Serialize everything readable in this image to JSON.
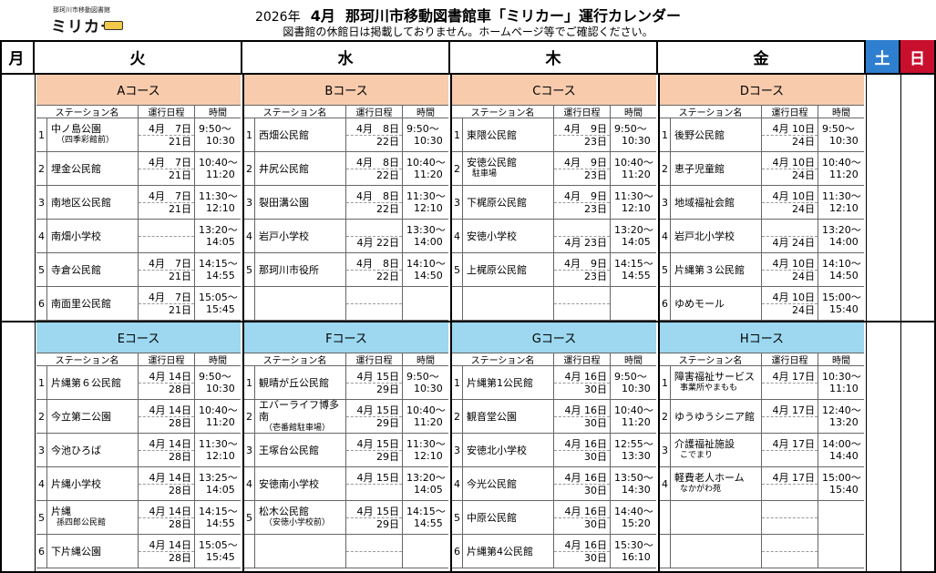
{
  "logo": {
    "small": "那珂川市移動図書館",
    "large": "ミリカー"
  },
  "title": {
    "year": "2026年",
    "month": "4月",
    "main": "那珂川市移動図書館車「ミリカー」運行カレンダー"
  },
  "subtitle": "図書館の休館日は掲載しておりません。ホームページ等でご確認ください。",
  "days": {
    "mon": "月",
    "tue": "火",
    "wed": "水",
    "thu": "木",
    "fri": "金",
    "sat": "土",
    "sun": "日"
  },
  "colors": {
    "top_course": "#f7cbac",
    "bottom_course": "#9dd8f0",
    "sat": "#2f7fd0",
    "sun": "#c8102e"
  },
  "col_headers": {
    "station": "ステーション名",
    "schedule": "運行日程",
    "time": "時間"
  },
  "top": [
    {
      "course": "Aコース",
      "rows": [
        {
          "n": "1",
          "st": "中ノ島公園",
          "sub": "（四季彩館前）",
          "d1": "4月　7日",
          "d2": "21日",
          "t1": "9:50～",
          "t2": "10:30"
        },
        {
          "n": "2",
          "st": "埋金公民館",
          "sub": "",
          "d1": "4月　7日",
          "d2": "21日",
          "t1": "10:40～",
          "t2": "11:20"
        },
        {
          "n": "3",
          "st": "南地区公民館",
          "sub": "",
          "d1": "4月　7日",
          "d2": "21日",
          "t1": "11:30～",
          "t2": "12:10"
        },
        {
          "n": "4",
          "st": "南畑小学校",
          "sub": "",
          "d1": "",
          "d2": "",
          "t1": "13:20～",
          "t2": "14:05"
        },
        {
          "n": "5",
          "st": "寺倉公民館",
          "sub": "",
          "d1": "4月　7日",
          "d2": "21日",
          "t1": "14:15～",
          "t2": "14:55"
        },
        {
          "n": "6",
          "st": "南面里公民館",
          "sub": "",
          "d1": "4月　7日",
          "d2": "21日",
          "t1": "15:05～",
          "t2": "15:45"
        }
      ]
    },
    {
      "course": "Bコース",
      "rows": [
        {
          "n": "1",
          "st": "西畑公民館",
          "sub": "",
          "d1": "4月　8日",
          "d2": "22日",
          "t1": "9:50～",
          "t2": "10:30"
        },
        {
          "n": "2",
          "st": "井尻公民館",
          "sub": "",
          "d1": "4月　8日",
          "d2": "22日",
          "t1": "10:40～",
          "t2": "11:20"
        },
        {
          "n": "3",
          "st": "裂田溝公園",
          "sub": "",
          "d1": "4月　8日",
          "d2": "22日",
          "t1": "11:30～",
          "t2": "12:10"
        },
        {
          "n": "4",
          "st": "岩戸小学校",
          "sub": "",
          "d1": "",
          "d2": "4月 22日",
          "t1": "13:30～",
          "t2": "14:00"
        },
        {
          "n": "5",
          "st": "那珂川市役所",
          "sub": "",
          "d1": "4月　8日",
          "d2": "22日",
          "t1": "14:10～",
          "t2": "14:50"
        },
        {
          "n": "",
          "st": "",
          "sub": "",
          "d1": "",
          "d2": "",
          "t1": "",
          "t2": ""
        }
      ]
    },
    {
      "course": "Cコース",
      "rows": [
        {
          "n": "1",
          "st": "東隈公民館",
          "sub": "",
          "d1": "4月　9日",
          "d2": "23日",
          "t1": "9:50～",
          "t2": "10:30"
        },
        {
          "n": "2",
          "st": "安徳公民館",
          "sub": "駐車場",
          "d1": "4月　9日",
          "d2": "23日",
          "t1": "10:40～",
          "t2": "11:20"
        },
        {
          "n": "3",
          "st": "下梶原公民館",
          "sub": "",
          "d1": "4月　9日",
          "d2": "23日",
          "t1": "11:30～",
          "t2": "12:10"
        },
        {
          "n": "4",
          "st": "安徳小学校",
          "sub": "",
          "d1": "",
          "d2": "4月 23日",
          "t1": "13:20～",
          "t2": "14:05"
        },
        {
          "n": "5",
          "st": "上梶原公民館",
          "sub": "",
          "d1": "4月　9日",
          "d2": "23日",
          "t1": "14:15～",
          "t2": "14:55"
        },
        {
          "n": "",
          "st": "",
          "sub": "",
          "d1": "",
          "d2": "",
          "t1": "",
          "t2": ""
        }
      ]
    },
    {
      "course": "Dコース",
      "rows": [
        {
          "n": "1",
          "st": "後野公民館",
          "sub": "",
          "d1": "4月 10日",
          "d2": "24日",
          "t1": "9:50～",
          "t2": "10:30"
        },
        {
          "n": "2",
          "st": "恵子児童館",
          "sub": "",
          "d1": "4月 10日",
          "d2": "24日",
          "t1": "10:40～",
          "t2": "11:20"
        },
        {
          "n": "3",
          "st": "地域福祉会館",
          "sub": "",
          "d1": "4月 10日",
          "d2": "24日",
          "t1": "11:30～",
          "t2": "12:10"
        },
        {
          "n": "4",
          "st": "岩戸北小学校",
          "sub": "",
          "d1": "",
          "d2": "4月 24日",
          "t1": "13:20～",
          "t2": "14:00"
        },
        {
          "n": "5",
          "st": "片縄第３公民館",
          "sub": "",
          "d1": "4月 10日",
          "d2": "24日",
          "t1": "14:10～",
          "t2": "14:50"
        },
        {
          "n": "6",
          "st": "ゆめモール",
          "sub": "",
          "d1": "4月 10日",
          "d2": "24日",
          "t1": "15:00～",
          "t2": "15:40"
        }
      ]
    }
  ],
  "bottom": [
    {
      "course": "Eコース",
      "rows": [
        {
          "n": "1",
          "st": "片縄第６公民館",
          "sub": "",
          "d1": "4月 14日",
          "d2": "28日",
          "t1": "9:50～",
          "t2": "10:30"
        },
        {
          "n": "2",
          "st": "今立第二公園",
          "sub": "",
          "d1": "4月 14日",
          "d2": "28日",
          "t1": "10:40～",
          "t2": "11:20"
        },
        {
          "n": "3",
          "st": "今池ひろば",
          "sub": "",
          "d1": "4月 14日",
          "d2": "28日",
          "t1": "11:30～",
          "t2": "12:10"
        },
        {
          "n": "4",
          "st": "片縄小学校",
          "sub": "",
          "d1": "4月 14日",
          "d2": "28日",
          "t1": "13:25～",
          "t2": "14:05"
        },
        {
          "n": "5",
          "st": "片縄",
          "sub": "孫四郎公民館",
          "d1": "4月 14日",
          "d2": "28日",
          "t1": "14:15～",
          "t2": "14:55"
        },
        {
          "n": "6",
          "st": "下片縄公園",
          "sub": "",
          "d1": "4月 14日",
          "d2": "28日",
          "t1": "15:05～",
          "t2": "15:45"
        }
      ]
    },
    {
      "course": "Fコース",
      "rows": [
        {
          "n": "1",
          "st": "観晴が丘公民館",
          "sub": "",
          "d1": "4月 15日",
          "d2": "29日",
          "t1": "9:50～",
          "t2": "10:30"
        },
        {
          "n": "2",
          "st": "エバーライフ博多南",
          "sub": "（壱番館駐車場）",
          "d1": "4月 15日",
          "d2": "29日",
          "t1": "10:40～",
          "t2": "11:20"
        },
        {
          "n": "3",
          "st": "王塚台公民館",
          "sub": "",
          "d1": "4月 15日",
          "d2": "29日",
          "t1": "11:30～",
          "t2": "12:10"
        },
        {
          "n": "4",
          "st": "安徳南小学校",
          "sub": "",
          "d1": "4月 15日",
          "d2": "",
          "t1": "13:20～",
          "t2": "14:05"
        },
        {
          "n": "5",
          "st": "松木公民館",
          "sub": "（安徳小学校前）",
          "d1": "4月 15日",
          "d2": "29日",
          "t1": "14:15～",
          "t2": "14:55"
        },
        {
          "n": "",
          "st": "",
          "sub": "",
          "d1": "",
          "d2": "",
          "t1": "",
          "t2": ""
        }
      ]
    },
    {
      "course": "Gコース",
      "rows": [
        {
          "n": "1",
          "st": "片縄第1公民館",
          "sub": "",
          "d1": "4月 16日",
          "d2": "30日",
          "t1": "9:50～",
          "t2": "10:30"
        },
        {
          "n": "2",
          "st": "観音堂公園",
          "sub": "",
          "d1": "4月 16日",
          "d2": "30日",
          "t1": "10:40～",
          "t2": "11:20"
        },
        {
          "n": "3",
          "st": "安徳北小学校",
          "sub": "",
          "d1": "4月 16日",
          "d2": "30日",
          "t1": "12:55～",
          "t2": "13:30"
        },
        {
          "n": "4",
          "st": "今光公民館",
          "sub": "",
          "d1": "4月 16日",
          "d2": "30日",
          "t1": "13:50～",
          "t2": "14:30"
        },
        {
          "n": "5",
          "st": "中原公民館",
          "sub": "",
          "d1": "4月 16日",
          "d2": "30日",
          "t1": "14:40～",
          "t2": "15:20"
        },
        {
          "n": "6",
          "st": "片縄第4公民館",
          "sub": "",
          "d1": "4月 16日",
          "d2": "30日",
          "t1": "15:30～",
          "t2": "16:10"
        }
      ]
    },
    {
      "course": "Hコース",
      "rows": [
        {
          "n": "1",
          "st": "障害福祉サービス",
          "sub": "事業所やまもも",
          "d1": "4月 17日",
          "d2": "",
          "t1": "10:30～",
          "t2": "11:10"
        },
        {
          "n": "2",
          "st": "ゆうゆうシニア館",
          "sub": "",
          "d1": "4月 17日",
          "d2": "",
          "t1": "12:40～",
          "t2": "13:20"
        },
        {
          "n": "3",
          "st": "介護福祉施設",
          "sub": "こでまり",
          "d1": "4月 17日",
          "d2": "",
          "t1": "14:00～",
          "t2": "14:40"
        },
        {
          "n": "4",
          "st": "軽費老人ホーム",
          "sub": "なかがわ苑",
          "d1": "4月 17日",
          "d2": "",
          "t1": "15:00～",
          "t2": "15:40"
        },
        {
          "n": "",
          "st": "",
          "sub": "",
          "d1": "",
          "d2": "",
          "t1": "",
          "t2": ""
        },
        {
          "n": "",
          "st": "",
          "sub": "",
          "d1": "",
          "d2": "",
          "t1": "",
          "t2": ""
        }
      ]
    }
  ]
}
